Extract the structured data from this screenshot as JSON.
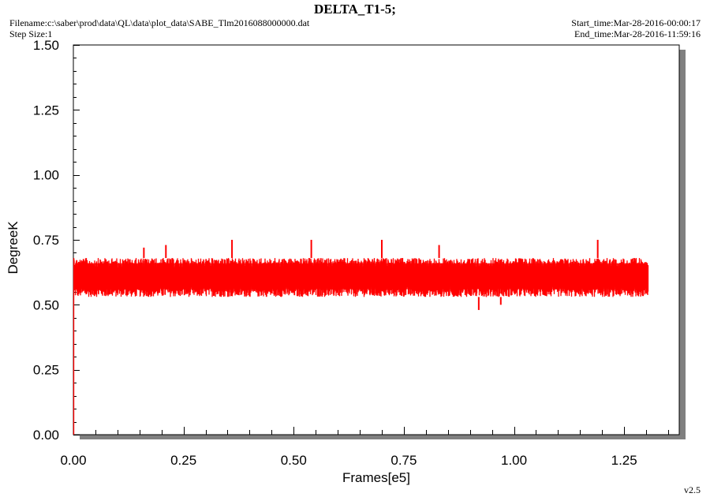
{
  "header": {
    "title": "DELTA_T1-5;",
    "filename": "Filename:c:\\saber\\prod\\data\\QL\\data\\plot_data\\SABE_Tlm2016088000000.dat",
    "step_size": "Step Size:1",
    "start_time": "Start_time:Mar-28-2016-00:00:17",
    "end_time": "End_time:Mar-28-2016-11:59:16",
    "version": "v2.5"
  },
  "colors": {
    "series": "#ff0000",
    "frame": "#000000",
    "shadow": "#808080",
    "background": "#ffffff"
  },
  "chart_data": {
    "type": "line",
    "xlabel": "Frames[e5]",
    "ylabel": "DegreeK",
    "xlim": [
      0,
      1.375
    ],
    "ylim": [
      0,
      1.5
    ],
    "x_ticks": [
      "0.00",
      "0.25",
      "0.50",
      "0.75",
      "1.00",
      "1.25"
    ],
    "x_tick_values": [
      0,
      0.25,
      0.5,
      0.75,
      1.0,
      1.25
    ],
    "y_ticks": [
      "0.00",
      "0.25",
      "0.50",
      "0.75",
      "1.00",
      "1.25",
      "1.50"
    ],
    "y_tick_values": [
      0,
      0.25,
      0.5,
      0.75,
      1.0,
      1.25,
      1.5
    ],
    "series": [
      {
        "color": "#ff0000",
        "x_range": [
          0,
          1.305
        ],
        "baseline": 0.61,
        "band_low": 0.53,
        "band_high": 0.68,
        "spikes_high": [
          [
            0.16,
            0.72
          ],
          [
            0.21,
            0.73
          ],
          [
            0.36,
            0.75
          ],
          [
            0.54,
            0.75
          ],
          [
            0.7,
            0.75
          ],
          [
            0.83,
            0.73
          ],
          [
            1.19,
            0.75
          ]
        ],
        "spikes_low": [
          [
            0.92,
            0.48
          ],
          [
            0.97,
            0.5
          ]
        ],
        "initial_min": 0.0
      }
    ]
  }
}
